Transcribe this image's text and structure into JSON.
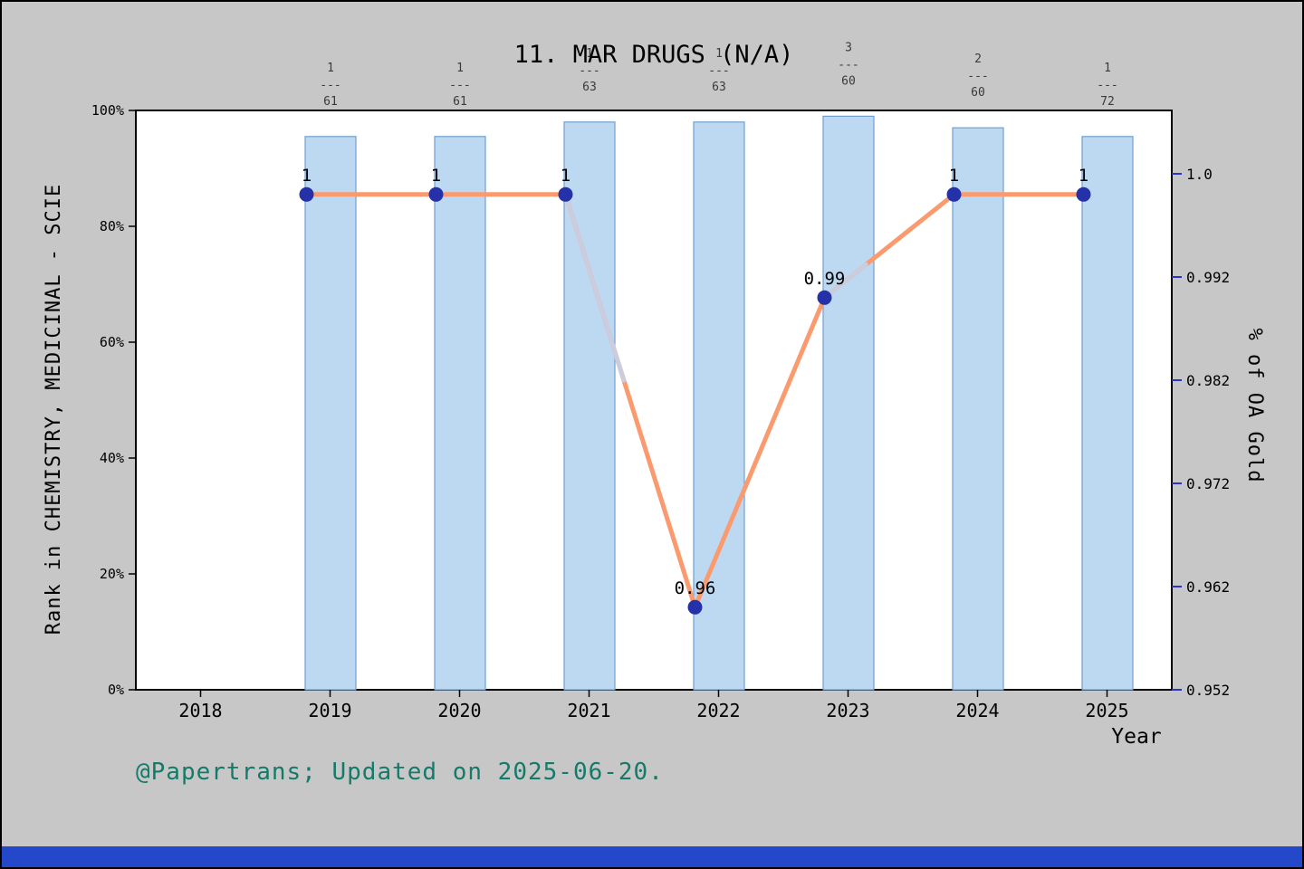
{
  "window": {
    "background": "#c7c7c7",
    "bottom_strip_color": "#2547c9"
  },
  "caption": {
    "text": "@Papertrans; Updated on 2025-06-20.",
    "color": "#147a6a"
  },
  "chart_data": {
    "type": "bar+line",
    "title": "11. MAR DRUGS (N/A)",
    "xlabel": "Year",
    "x_ticks": [
      "2018",
      "2019",
      "2020",
      "2021",
      "2022",
      "2023",
      "2024",
      "2025"
    ],
    "left_axis": {
      "label": "Rank in CHEMISTRY, MEDICINAL - SCIE",
      "ticks": [
        "0%",
        "20%",
        "40%",
        "60%",
        "80%",
        "100%"
      ],
      "range": [
        0,
        100
      ],
      "color": "#000000"
    },
    "right_axis": {
      "label": "% of OA Gold",
      "ticks": [
        "0.952",
        "0.962",
        "0.972",
        "0.982",
        "0.992",
        "1.0"
      ],
      "range": [
        0.952,
        1.0
      ],
      "color": "#2a35c8"
    },
    "years": [
      "2019",
      "2020",
      "2021",
      "2022",
      "2023",
      "2024",
      "2025"
    ],
    "bars": {
      "name": "Rank percentile in category",
      "values_pct": [
        95.5,
        95.5,
        98,
        98,
        99,
        97,
        95.5
      ],
      "fill": "#bdd9f2",
      "edge": "#6f9fd0"
    },
    "rank_fractions": [
      {
        "numerator": "1",
        "denominator": "61"
      },
      {
        "numerator": "1",
        "denominator": "61"
      },
      {
        "numerator": "1",
        "denominator": "63"
      },
      {
        "numerator": "1",
        "denominator": "63"
      },
      {
        "numerator": "3",
        "denominator": "60"
      },
      {
        "numerator": "2",
        "denominator": "60"
      },
      {
        "numerator": "1",
        "denominator": "72"
      }
    ],
    "line": {
      "name": "% of OA Gold",
      "values": [
        1.0,
        1.0,
        1.0,
        0.96,
        0.99,
        1.0,
        1.0
      ],
      "point_labels": [
        "1",
        "1",
        "1",
        "0.96",
        "0.99",
        "1",
        "1"
      ],
      "color": "#fb9a6e",
      "shadow_color": "#cbccdd",
      "marker_color": "#2531a8",
      "label_color": "#4169e1"
    },
    "legend": "off",
    "grid": "off"
  }
}
